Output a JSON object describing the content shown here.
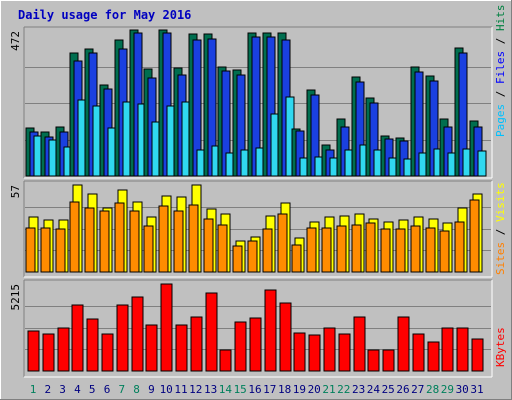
{
  "chart_data": {
    "type": "bar",
    "title": "Daily usage for May 2016",
    "categories": [
      "1",
      "2",
      "3",
      "4",
      "5",
      "6",
      "7",
      "8",
      "9",
      "10",
      "11",
      "12",
      "13",
      "14",
      "15",
      "16",
      "17",
      "18",
      "19",
      "20",
      "21",
      "22",
      "23",
      "24",
      "25",
      "26",
      "27",
      "28",
      "29",
      "30",
      "31"
    ],
    "weekend_days": [
      "1",
      "7",
      "8",
      "14",
      "15",
      "21",
      "22",
      "28",
      "29"
    ],
    "panels": [
      {
        "name": "hits-files-pages",
        "ymax": 472,
        "ymax_label": "472",
        "legend": [
          {
            "name": "Pages",
            "color": "#00c0ff"
          },
          {
            "name": "Files",
            "color": "#0000ff"
          },
          {
            "name": "Hits",
            "color": "#008040"
          }
        ],
        "series": [
          {
            "name": "Hits",
            "color": "#006e4f",
            "values": [
              155,
              142,
              157,
              397,
              412,
              295,
              440,
              472,
              347,
              472,
              350,
              458,
              458,
              353,
              342,
              462,
              462,
              462,
              153,
              278,
              100,
              183,
              320,
              252,
              128,
              124,
              352,
              322,
              183,
              415,
              178
            ]
          },
          {
            "name": "Files",
            "color": "#1a40e0",
            "values": [
              142,
              127,
              142,
              372,
              397,
              280,
              410,
              462,
              317,
              462,
              327,
              440,
              443,
              338,
              327,
              448,
              448,
              440,
              144,
              263,
              83,
              160,
              303,
              235,
              120,
              114,
              337,
              307,
              160,
              397,
              160
            ]
          },
          {
            "name": "Pages",
            "color": "#30d8f0",
            "values": [
              130,
              115,
              94,
              247,
              225,
              154,
              240,
              232,
              175,
              226,
              238,
              84,
              98,
              75,
              83,
              90,
              200,
              257,
              58,
              60,
              58,
              84,
              100,
              85,
              57,
              54,
              75,
              88,
              75,
              88,
              82
            ]
          }
        ]
      },
      {
        "name": "visits-sites",
        "ymax": 57,
        "ymax_label": "57",
        "legend": [
          {
            "name": "Sites",
            "color": "#ff8000"
          },
          {
            "name": "Visits",
            "color": "#ffff00"
          }
        ],
        "series": [
          {
            "name": "Visits",
            "color": "#ffff00",
            "values": [
              36,
              34,
              34,
              57,
              51,
              42,
              54,
              46,
              36,
              50,
              49,
              57,
              41,
              38,
              20,
              23,
              37,
              45,
              22,
              33,
              36,
              37,
              38,
              35,
              33,
              34,
              36,
              35,
              32,
              42,
              51
            ]
          },
          {
            "name": "Sites",
            "color": "#ff8c00",
            "values": [
              29,
              29,
              28,
              46,
              42,
              40,
              45,
              40,
              30,
              43,
              40,
              44,
              35,
              31,
              17,
              20,
              28,
              38,
              18,
              29,
              29,
              30,
              31,
              32,
              28,
              28,
              30,
              29,
              27,
              33,
              47
            ]
          }
        ]
      },
      {
        "name": "kbytes",
        "ymax": 5215,
        "ymax_label": "5215",
        "legend": [
          {
            "name": "KBytes",
            "color": "#ff0000"
          }
        ],
        "series": [
          {
            "name": "KBytes",
            "color": "#ff0000",
            "values": [
              2400,
              2200,
              2550,
              3950,
              3100,
              2200,
              3950,
              4450,
              2750,
              5215,
              2750,
              3250,
              4700,
              1250,
              2950,
              3200,
              4850,
              4050,
              2250,
              2150,
              2550,
              2200,
              3250,
              1250,
              1250,
              3250,
              2200,
              1750,
              2550,
              2550,
              1900
            ]
          }
        ]
      }
    ]
  }
}
